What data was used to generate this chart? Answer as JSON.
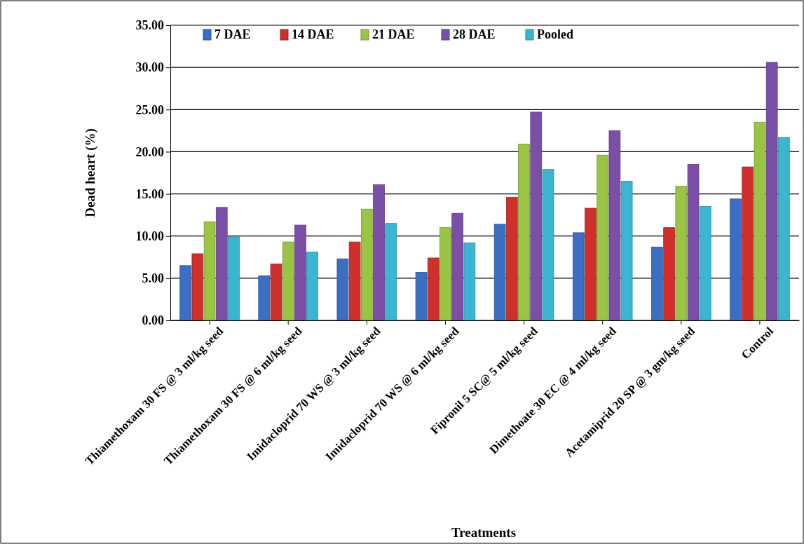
{
  "chart_data": {
    "type": "bar",
    "xlabel": "Treatments",
    "ylabel": "Dead heart (%)",
    "categories": [
      "Thiamethoxam 30 FS @ 3 ml/kg seed",
      "Thiamethoxam 30 FS @ 6 ml/kg seed",
      "Imidacloprid 70 WS @ 3 ml/kg seed",
      "Imidacloprid 70 WS @ 6 ml/kg seed",
      "Fipronil 5 SC@ 5 ml/kg seed",
      "Dimethoate 30 EC @ 4 ml/kg seed",
      "Acetamiprid 20 SP @ 3 gm/kg seed",
      "Control"
    ],
    "series": [
      {
        "name": "7 DAE",
        "color": "#3a6fc4",
        "values": [
          6.5,
          5.3,
          7.3,
          5.7,
          11.4,
          10.4,
          8.7,
          14.4
        ]
      },
      {
        "name": "14 DAE",
        "color": "#d0302c",
        "values": [
          7.9,
          6.7,
          9.3,
          7.4,
          14.6,
          13.3,
          11.0,
          18.2
        ]
      },
      {
        "name": "21 DAE",
        "color": "#9ac443",
        "values": [
          11.7,
          9.3,
          13.2,
          11.0,
          20.9,
          19.6,
          15.9,
          23.5
        ]
      },
      {
        "name": "28 DAE",
        "color": "#7b4fa8",
        "values": [
          13.4,
          11.3,
          16.1,
          12.7,
          24.7,
          22.5,
          18.5,
          30.6
        ]
      },
      {
        "name": "Pooled",
        "color": "#3ab6d0",
        "values": [
          9.9,
          8.1,
          11.5,
          9.2,
          17.9,
          16.5,
          13.5,
          21.7
        ]
      }
    ],
    "ylim": [
      0,
      35
    ],
    "yticks": [
      {
        "value": 0,
        "label": "0.00"
      },
      {
        "value": 5,
        "label": "5.00"
      },
      {
        "value": 10,
        "label": "10.00"
      },
      {
        "value": 15,
        "label": "15.00"
      },
      {
        "value": 20,
        "label": "20.00"
      },
      {
        "value": 25,
        "label": "25.00"
      },
      {
        "value": 30,
        "label": "30.00"
      },
      {
        "value": 35,
        "label": "35.00"
      }
    ],
    "grid": "y",
    "legend": "top"
  }
}
